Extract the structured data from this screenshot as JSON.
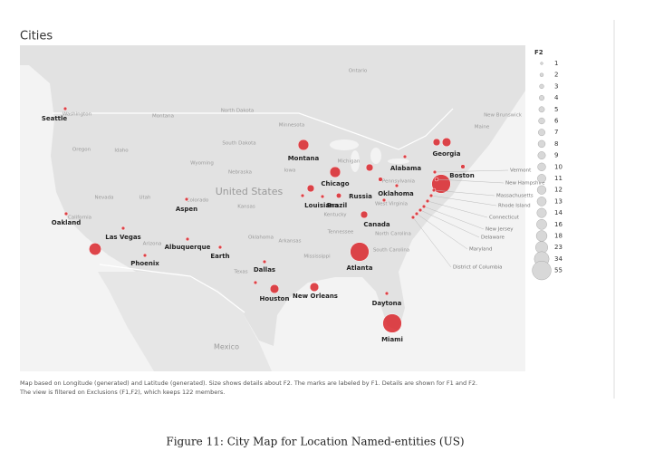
{
  "title": "Cities",
  "legend": {
    "title": "F2",
    "values": [
      1,
      2,
      3,
      4,
      5,
      6,
      7,
      8,
      9,
      10,
      11,
      12,
      13,
      14,
      16,
      18,
      23,
      34,
      55
    ]
  },
  "cities": [
    {
      "label": "Seattle",
      "f2": 2
    },
    {
      "label": "Montana",
      "f2": 18
    },
    {
      "label": "Chicago",
      "f2": 18
    },
    {
      "label": "Alabama",
      "f2": 8
    },
    {
      "label": "Georgia",
      "f2": 12
    },
    {
      "label": null,
      "f2": 8
    },
    {
      "label": "Boston",
      "f2": 55
    },
    {
      "label": "Oklahoma",
      "f2": 2
    },
    {
      "label": "Russia",
      "f2": 4
    },
    {
      "label": "Louisiana",
      "f2": 8
    },
    {
      "label": "Brazil",
      "f2": 2
    },
    {
      "label": "Canada",
      "f2": 8
    },
    {
      "label": "Aspen",
      "f2": 2
    },
    {
      "label": "Oakland",
      "f2": 2
    },
    {
      "label": "Las Vegas",
      "f2": 2
    },
    {
      "label": null,
      "f2": 23
    },
    {
      "label": "Phoenix",
      "f2": 2
    },
    {
      "label": "Albuquerque",
      "f2": 2
    },
    {
      "label": "Earth",
      "f2": 2
    },
    {
      "label": "Dallas",
      "f2": 2
    },
    {
      "label": "Houston",
      "f2": 12
    },
    {
      "label": null,
      "f2": 2
    },
    {
      "label": "New Orleans",
      "f2": 12
    },
    {
      "label": "Atlanta",
      "f2": 55
    },
    {
      "label": "Daytona",
      "f2": 2
    },
    {
      "label": "Miami",
      "f2": 55
    },
    {
      "label": "Vermont",
      "f2": 2
    },
    {
      "label": "New Hampshire",
      "f2": 2
    },
    {
      "label": "Massachusetts",
      "f2": 2
    },
    {
      "label": "Rhode Island",
      "f2": 2
    },
    {
      "label": "Connecticut",
      "f2": 2
    },
    {
      "label": "New Jersey",
      "f2": 2
    },
    {
      "label": "Delaware",
      "f2": 2
    },
    {
      "label": "Maryland",
      "f2": 2
    },
    {
      "label": "District of Columbia",
      "f2": 2
    },
    {
      "label": null,
      "f2": 3
    },
    {
      "label": null,
      "f2": 2
    },
    {
      "label": null,
      "f2": 3
    },
    {
      "label": null,
      "f2": 2
    },
    {
      "label": null,
      "f2": 2
    }
  ],
  "map_labels": [
    "Ontario",
    "North Dakota",
    "Montana",
    "Minnesota",
    "South Dakota",
    "Wyoming",
    "Nebraska",
    "Iowa",
    "Michigan",
    "United States",
    "Nevada",
    "Utah",
    "Colorado",
    "Kansas",
    "Oklahoma",
    "Arkansas",
    "Tennessee",
    "Mississippi",
    "Texas",
    "Arizona",
    "Idaho",
    "Oregon",
    "Washington",
    "California",
    "Mexico",
    "Kentucky",
    "West Virginia",
    "North Carolina",
    "South Carolina",
    "Pennsylvania",
    "Maine",
    "New Brunswick"
  ],
  "note": [
    "Map based on Longitude (generated) and Latitude (generated).  Size shows details about F2.  The marks are labeled by F1.  Details are shown for F1 and F2.",
    "The view is filtered on Exclusions (F1,F2), which keeps 122 members."
  ],
  "caption": "Figure 11: City Map for Location Named-entities (US)"
}
